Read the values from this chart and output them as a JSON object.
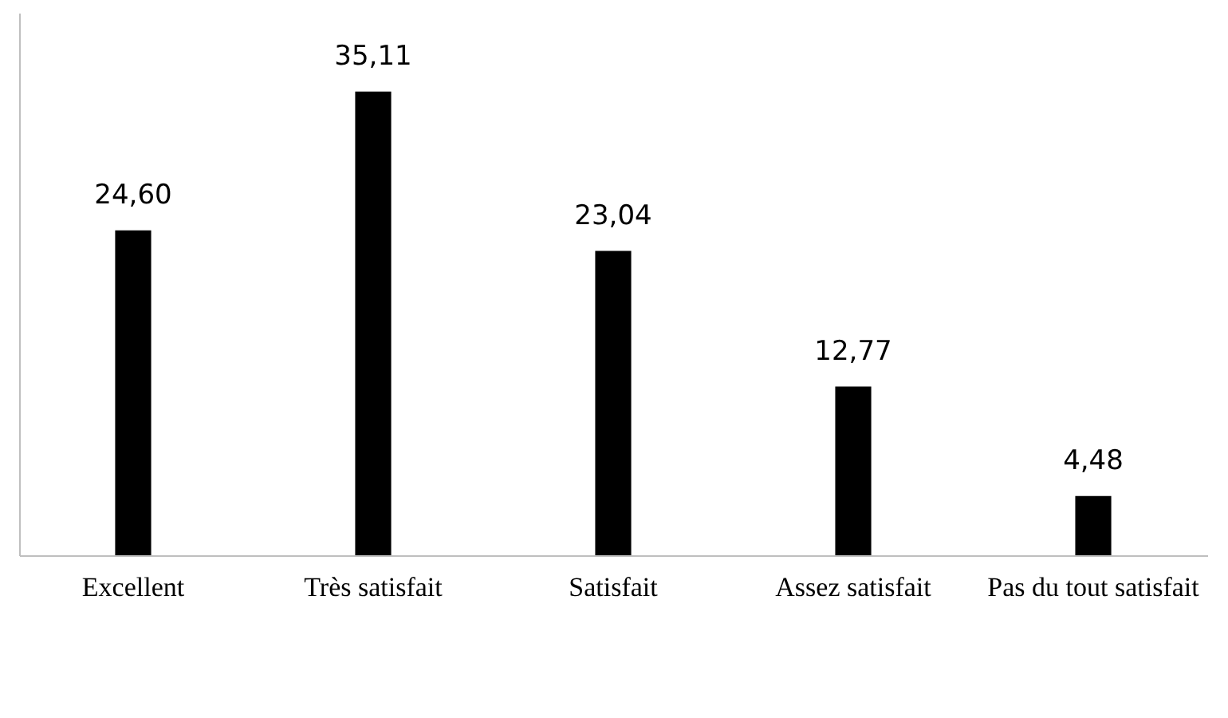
{
  "chart_data": {
    "type": "bar",
    "categories": [
      "Excellent",
      "Très satisfait",
      "Satisfait",
      "Assez satisfait",
      "Pas du tout satisfait"
    ],
    "values": [
      24.6,
      35.11,
      23.04,
      12.77,
      4.48
    ],
    "value_labels": [
      "24,60",
      "35,11",
      "23,04",
      "12,77",
      "4,48"
    ],
    "color": "#000000",
    "grid": false
  }
}
